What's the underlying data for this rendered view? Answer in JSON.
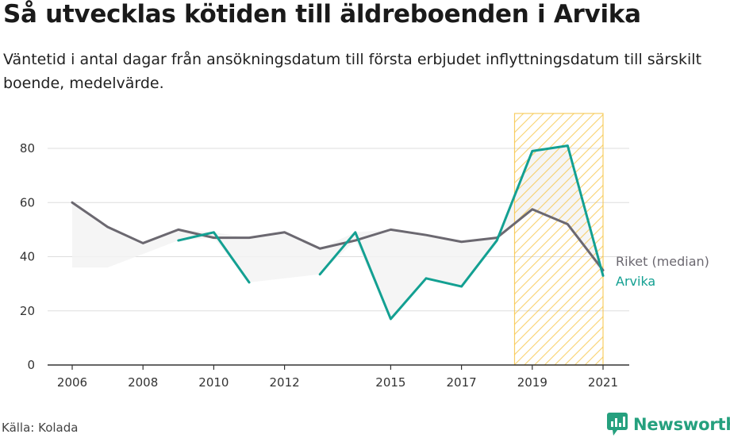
{
  "title": "Så utvecklas kötiden till äldreboenden i Arvika",
  "subtitle": "Väntetid i antal dagar från ansökningsdatum till första erbjudet inflyttningsdatum till särskilt boende, medelvärde.",
  "source": "Källa: Kolada",
  "brand": "Newsworthy",
  "colors": {
    "riket": "#6b6870",
    "arvika": "#13a092",
    "band": "#f3f3f3",
    "highlight": "#f6c23e",
    "brand": "#25a07e"
  },
  "chart_data": {
    "type": "line",
    "x_ticks": [
      2006,
      2008,
      2010,
      2012,
      2015,
      2017,
      2019,
      2021
    ],
    "xlim": [
      2006,
      2021
    ],
    "ylim": [
      0,
      90
    ],
    "y_ticks": [
      0,
      20,
      40,
      60,
      80
    ],
    "grid": true,
    "highlight_range": [
      2018.5,
      2021
    ],
    "series": [
      {
        "name": "Riket (median)",
        "x": [
          2006,
          2007,
          2008,
          2009,
          2010,
          2011,
          2012,
          2013,
          2014,
          2015,
          2016,
          2017,
          2018,
          2019,
          2020,
          2021
        ],
        "values": [
          60,
          51,
          45,
          50,
          47,
          47,
          49,
          43,
          46,
          50,
          48,
          45.5,
          47,
          57.5,
          52,
          35
        ]
      },
      {
        "name": "Arvika",
        "x": [
          2006,
          2007,
          2008,
          2009,
          2010,
          2011,
          2012,
          2013,
          2014,
          2015,
          2016,
          2017,
          2018,
          2019,
          2020,
          2021
        ],
        "values": [
          null,
          null,
          null,
          46,
          49,
          30.5,
          null,
          33.5,
          49,
          17,
          32,
          29,
          46,
          79,
          81,
          33
        ]
      }
    ],
    "band": {
      "x": [
        2006,
        2007,
        2008,
        2009,
        2010,
        2011,
        2012,
        2013,
        2014,
        2015,
        2016,
        2017,
        2018,
        2019,
        2020,
        2021
      ],
      "lower": [
        36,
        36,
        41,
        46,
        47,
        30.5,
        32,
        33.5,
        46,
        17,
        32,
        29,
        46,
        57.5,
        52,
        33
      ],
      "upper": [
        60,
        51,
        45,
        50,
        49,
        47,
        49,
        43,
        49,
        50,
        48,
        45.5,
        47,
        79,
        81,
        35
      ]
    }
  }
}
